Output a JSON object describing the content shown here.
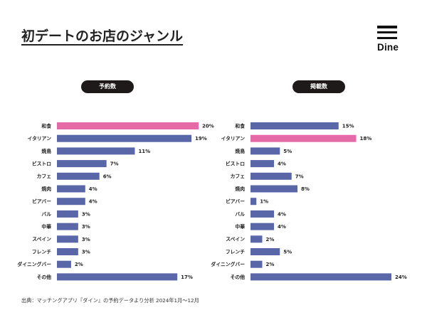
{
  "title": "初デートのお店のジャンル",
  "logo": {
    "text": "Dine"
  },
  "colors": {
    "bar": "#5966a8",
    "highlight": "#e66aa8",
    "pill": "#1f1a1a"
  },
  "footer": "出典：マッチングアプリ『ダイン』の予約データより分析 2024年1月〜12月",
  "chart_data": [
    {
      "type": "bar",
      "orientation": "horizontal",
      "title": "予約数",
      "categories": [
        "和食",
        "イタリアン",
        "焼鳥",
        "ビストロ",
        "カフェ",
        "焼肉",
        "ビアバー",
        "バル",
        "中華",
        "スペイン",
        "フレンチ",
        "ダイニングバー",
        "その他"
      ],
      "values": [
        20,
        19,
        11,
        7,
        6,
        4,
        4,
        3,
        3,
        3,
        3,
        2,
        17
      ],
      "labels": [
        "20%",
        "19%",
        "11%",
        "7%",
        "6%",
        "4%",
        "4%",
        "3%",
        "3%",
        "3%",
        "3%",
        "2%",
        "17%"
      ],
      "highlight": "和食",
      "unit": "%"
    },
    {
      "type": "bar",
      "orientation": "horizontal",
      "title": "掲載数",
      "categories": [
        "和食",
        "イタリアン",
        "焼鳥",
        "ビストロ",
        "カフェ",
        "焼肉",
        "ビアバー",
        "バル",
        "中華",
        "スペイン",
        "フレンチ",
        "ダイニングバー",
        "その他"
      ],
      "values": [
        15,
        18,
        5,
        4,
        7,
        8,
        1,
        4,
        4,
        2,
        5,
        2,
        24
      ],
      "labels": [
        "15%",
        "18%",
        "5%",
        "4%",
        "7%",
        "8%",
        "1%",
        "4%",
        "4%",
        "2%",
        "5%",
        "2%",
        "24%"
      ],
      "highlight": "イタリアン",
      "unit": "%"
    }
  ]
}
